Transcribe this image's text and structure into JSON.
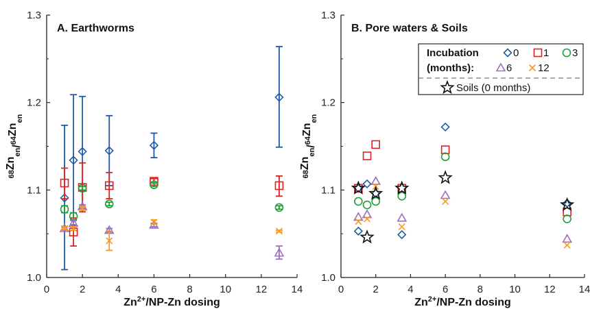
{
  "chart_data": [
    {
      "panel": "A",
      "type": "scatter",
      "title": "A. Earthworms",
      "xlabel": "Zn²⁺/NP-Zn dosing",
      "ylabel": "⁶⁸Znₑₙ/⁶⁴Znₑₙ",
      "xlim": [
        0,
        14
      ],
      "ylim": [
        1.0,
        1.3
      ],
      "xticks": [
        0,
        2,
        4,
        6,
        8,
        10,
        12,
        14
      ],
      "yticks": [
        1.0,
        1.1,
        1.2,
        1.3
      ],
      "ytick_labels": [
        "1.0",
        "1.1",
        "1.2",
        "1.3"
      ],
      "error_bars": true,
      "series": [
        {
          "name": "0",
          "marker": "diamond",
          "color": "#1f5aa6",
          "points": [
            {
              "x": 1.0,
              "y": 1.091,
              "lo": 1.009,
              "hi": 1.174
            },
            {
              "x": 1.5,
              "y": 1.134,
              "lo": 1.06,
              "hi": 1.209
            },
            {
              "x": 2.0,
              "y": 1.144,
              "lo": 1.081,
              "hi": 1.207
            },
            {
              "x": 3.5,
              "y": 1.145,
              "lo": 1.105,
              "hi": 1.185
            },
            {
              "x": 6.0,
              "y": 1.151,
              "lo": 1.137,
              "hi": 1.165
            },
            {
              "x": 13.0,
              "y": 1.206,
              "lo": 1.149,
              "hi": 1.264
            }
          ]
        },
        {
          "name": "1",
          "marker": "square",
          "color": "#e02020",
          "points": [
            {
              "x": 1.0,
              "y": 1.108,
              "lo": 1.09,
              "hi": 1.125
            },
            {
              "x": 1.5,
              "y": 1.052,
              "lo": 1.036,
              "hi": 1.068
            },
            {
              "x": 2.0,
              "y": 1.103,
              "lo": 1.075,
              "hi": 1.131
            },
            {
              "x": 3.5,
              "y": 1.105,
              "lo": 1.09,
              "hi": 1.12
            },
            {
              "x": 6.0,
              "y": 1.11,
              "lo": 1.108,
              "hi": 1.113
            },
            {
              "x": 13.0,
              "y": 1.105,
              "lo": 1.093,
              "hi": 1.116
            }
          ]
        },
        {
          "name": "3",
          "marker": "circle",
          "color": "#1e9e3a",
          "points": [
            {
              "x": 1.0,
              "y": 1.078,
              "lo": 1.074,
              "hi": 1.082
            },
            {
              "x": 1.5,
              "y": 1.07,
              "lo": 1.066,
              "hi": 1.074
            },
            {
              "x": 2.0,
              "y": 1.102,
              "lo": 1.1,
              "hi": 1.104
            },
            {
              "x": 3.5,
              "y": 1.084,
              "lo": 1.082,
              "hi": 1.086
            },
            {
              "x": 6.0,
              "y": 1.106,
              "lo": 1.104,
              "hi": 1.108
            },
            {
              "x": 13.0,
              "y": 1.08,
              "lo": 1.078,
              "hi": 1.082
            }
          ]
        },
        {
          "name": "6",
          "marker": "triangle",
          "color": "#9b6fc0",
          "points": [
            {
              "x": 1.0,
              "y": 1.056,
              "lo": 1.054,
              "hi": 1.058
            },
            {
              "x": 1.5,
              "y": 1.062,
              "lo": 1.059,
              "hi": 1.065
            },
            {
              "x": 2.0,
              "y": 1.081,
              "lo": 1.079,
              "hi": 1.083
            },
            {
              "x": 3.5,
              "y": 1.054,
              "lo": 1.052,
              "hi": 1.056
            },
            {
              "x": 6.0,
              "y": 1.06,
              "lo": 1.058,
              "hi": 1.062
            },
            {
              "x": 13.0,
              "y": 1.028,
              "lo": 1.021,
              "hi": 1.036
            }
          ]
        },
        {
          "name": "12",
          "marker": "x",
          "color": "#f59a23",
          "points": [
            {
              "x": 1.0,
              "y": 1.056,
              "lo": 1.055,
              "hi": 1.058
            },
            {
              "x": 1.5,
              "y": 1.056,
              "lo": 1.054,
              "hi": 1.058
            },
            {
              "x": 2.0,
              "y": 1.079,
              "lo": 1.077,
              "hi": 1.081
            },
            {
              "x": 3.5,
              "y": 1.042,
              "lo": 1.031,
              "hi": 1.053
            },
            {
              "x": 6.0,
              "y": 1.063,
              "lo": 1.061,
              "hi": 1.066
            },
            {
              "x": 13.0,
              "y": 1.053,
              "lo": 1.052,
              "hi": 1.054
            }
          ]
        }
      ]
    },
    {
      "panel": "B",
      "type": "scatter",
      "title": "B. Pore waters & Soils",
      "xlabel": "Zn²⁺/NP-Zn dosing",
      "ylabel": "⁶⁸Znₑₙ/⁶⁴Znₑₙ",
      "xlim": [
        0,
        14
      ],
      "ylim": [
        1.0,
        1.3
      ],
      "xticks": [
        0,
        2,
        4,
        6,
        8,
        10,
        12,
        14
      ],
      "yticks": [
        1.0,
        1.1,
        1.2,
        1.3
      ],
      "ytick_labels": [
        "1.0",
        "1.1",
        "1.2",
        "1.3"
      ],
      "legend": {
        "placement": "top-right",
        "header_line1": "Incubation",
        "header_line2": "(months):",
        "soils_label": "Soils (0 months)"
      },
      "series": [
        {
          "name": "0",
          "marker": "diamond",
          "color": "#1f5aa6",
          "points": [
            {
              "x": 1.0,
              "y": 1.053
            },
            {
              "x": 1.0,
              "y": 1.102
            },
            {
              "x": 1.5,
              "y": 1.107
            },
            {
              "x": 2.0,
              "y": 1.096
            },
            {
              "x": 3.5,
              "y": 1.049
            },
            {
              "x": 6.0,
              "y": 1.172
            },
            {
              "x": 13.0,
              "y": 1.085
            }
          ]
        },
        {
          "name": "1",
          "marker": "square",
          "color": "#e02020",
          "points": [
            {
              "x": 1.0,
              "y": 1.102
            },
            {
              "x": 1.5,
              "y": 1.139
            },
            {
              "x": 2.0,
              "y": 1.152
            },
            {
              "x": 3.5,
              "y": 1.102
            },
            {
              "x": 6.0,
              "y": 1.146
            },
            {
              "x": 13.0,
              "y": 1.075
            }
          ]
        },
        {
          "name": "3",
          "marker": "circle",
          "color": "#1e9e3a",
          "points": [
            {
              "x": 1.0,
              "y": 1.087
            },
            {
              "x": 1.5,
              "y": 1.083
            },
            {
              "x": 2.0,
              "y": 1.087
            },
            {
              "x": 3.5,
              "y": 1.093
            },
            {
              "x": 6.0,
              "y": 1.138
            },
            {
              "x": 13.0,
              "y": 1.067
            }
          ]
        },
        {
          "name": "6",
          "marker": "triangle",
          "color": "#9b6fc0",
          "points": [
            {
              "x": 1.0,
              "y": 1.069
            },
            {
              "x": 1.5,
              "y": 1.072
            },
            {
              "x": 2.0,
              "y": 1.11
            },
            {
              "x": 3.5,
              "y": 1.068
            },
            {
              "x": 6.0,
              "y": 1.094
            },
            {
              "x": 13.0,
              "y": 1.044
            }
          ]
        },
        {
          "name": "12",
          "marker": "x",
          "color": "#f59a23",
          "points": [
            {
              "x": 1.0,
              "y": 1.064
            },
            {
              "x": 1.5,
              "y": 1.067
            },
            {
              "x": 2.0,
              "y": 1.104
            },
            {
              "x": 3.5,
              "y": 1.058
            },
            {
              "x": 6.0,
              "y": 1.087
            },
            {
              "x": 13.0,
              "y": 1.037
            }
          ]
        },
        {
          "name": "Soils (0 months)",
          "marker": "star",
          "color": "#111111",
          "points": [
            {
              "x": 1.0,
              "y": 1.102
            },
            {
              "x": 1.5,
              "y": 1.046
            },
            {
              "x": 2.0,
              "y": 1.096
            },
            {
              "x": 3.5,
              "y": 1.102
            },
            {
              "x": 6.0,
              "y": 1.114
            },
            {
              "x": 13.0,
              "y": 1.083
            }
          ]
        }
      ]
    }
  ]
}
